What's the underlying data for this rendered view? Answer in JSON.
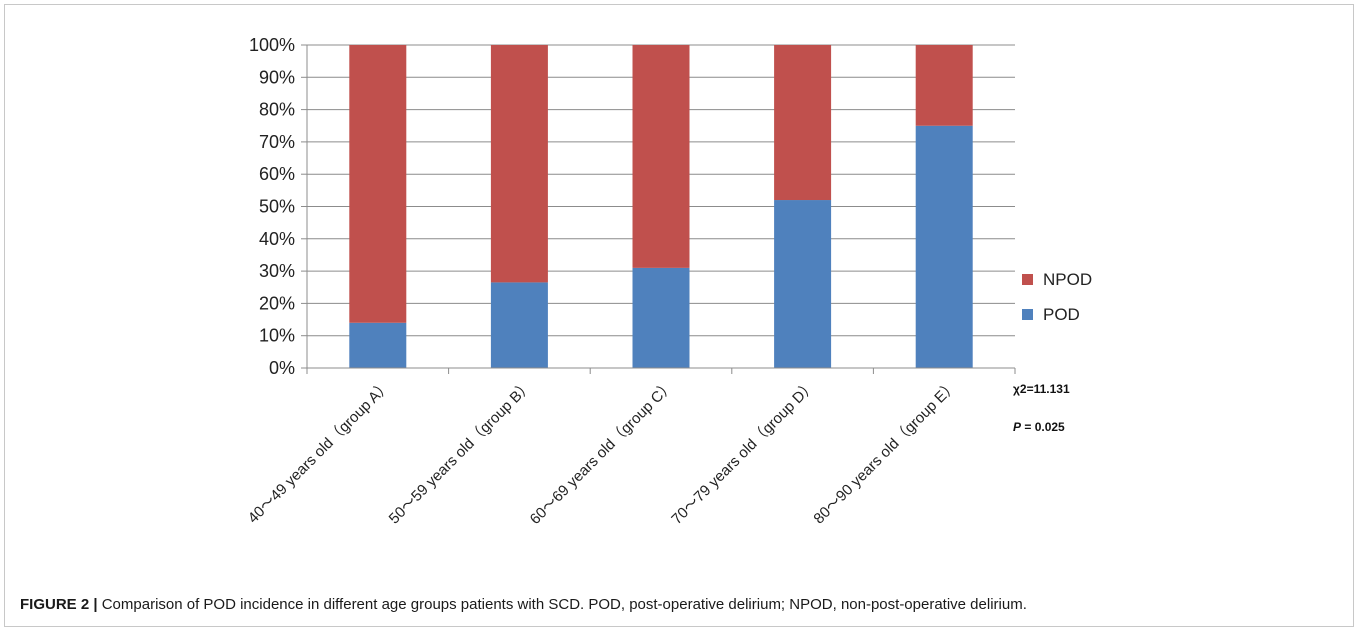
{
  "chart_data": {
    "type": "bar",
    "stacked": true,
    "categories": [
      "40～49 years old（group A）",
      "50～59 years old（group B）",
      "60～69 years old（group C）",
      "70～79 years old（group D）",
      "80～90 years old（group E）"
    ],
    "series": [
      {
        "name": "POD",
        "values": [
          14,
          26.5,
          31,
          52,
          75
        ],
        "color": "#4f81bd"
      },
      {
        "name": "NPOD",
        "values": [
          86,
          73.5,
          69,
          48,
          25
        ],
        "color": "#c0504d"
      }
    ],
    "yticks": [
      "0%",
      "10%",
      "20%",
      "30%",
      "40%",
      "50%",
      "60%",
      "70%",
      "80%",
      "90%",
      "100%"
    ],
    "ylim": [
      0,
      100
    ],
    "yunit": "%",
    "grid": true,
    "legend_position": "right",
    "annotations": {
      "chi_square": "χ2=11.131",
      "p_label": "P",
      "p_rest": " = 0.025"
    }
  },
  "caption": {
    "label": "FIGURE 2 |",
    "text": " Comparison of POD incidence in different age groups patients with SCD. POD, post-operative delirium; NPOD, non-post-operative delirium."
  }
}
